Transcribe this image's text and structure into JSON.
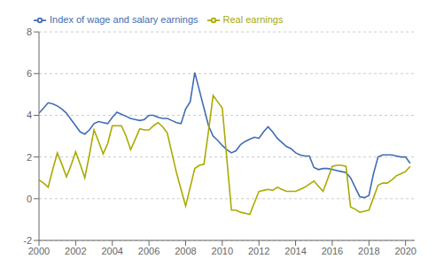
{
  "chart_data": {
    "type": "line",
    "x": [
      2000.0,
      2000.25,
      2000.5,
      2000.75,
      2001.0,
      2001.25,
      2001.5,
      2001.75,
      2002.0,
      2002.25,
      2002.5,
      2002.75,
      2003.0,
      2003.25,
      2003.5,
      2003.75,
      2004.0,
      2004.25,
      2004.5,
      2004.75,
      2005.0,
      2005.25,
      2005.5,
      2005.75,
      2006.0,
      2006.25,
      2006.5,
      2006.75,
      2007.0,
      2007.25,
      2007.5,
      2007.75,
      2008.0,
      2008.25,
      2008.5,
      2008.75,
      2009.0,
      2009.25,
      2009.5,
      2009.75,
      2010.0,
      2010.25,
      2010.5,
      2010.75,
      2011.0,
      2011.25,
      2011.5,
      2011.75,
      2012.0,
      2012.25,
      2012.5,
      2012.75,
      2013.0,
      2013.25,
      2013.5,
      2013.75,
      2014.0,
      2014.25,
      2014.5,
      2014.75,
      2015.0,
      2015.25,
      2015.5,
      2015.75,
      2016.0,
      2016.25,
      2016.5,
      2016.75,
      2017.0,
      2017.25,
      2017.5,
      2017.75,
      2018.0,
      2018.25,
      2018.5,
      2018.75,
      2019.0,
      2019.25,
      2019.5,
      2019.75,
      2020.0,
      2020.25
    ],
    "series": [
      {
        "name": "Index of wage and salary earnings",
        "color": "#3F6DB4",
        "values": [
          4.1,
          4.35,
          4.6,
          4.55,
          4.45,
          4.3,
          4.1,
          3.8,
          3.5,
          3.2,
          3.1,
          3.3,
          3.6,
          3.7,
          3.65,
          3.6,
          3.9,
          4.15,
          4.05,
          3.95,
          3.85,
          3.8,
          3.75,
          3.8,
          4.0,
          4.0,
          3.9,
          3.85,
          3.85,
          3.75,
          3.65,
          3.6,
          4.3,
          4.65,
          6.05,
          5.2,
          4.35,
          3.5,
          3.0,
          2.8,
          2.55,
          2.35,
          2.2,
          2.3,
          2.6,
          2.75,
          2.85,
          2.95,
          2.9,
          3.2,
          3.45,
          3.2,
          2.9,
          2.7,
          2.5,
          2.4,
          2.2,
          2.1,
          2.05,
          2.05,
          1.5,
          1.4,
          1.45,
          1.45,
          1.4,
          1.35,
          1.3,
          1.25,
          1.0,
          0.55,
          0.1,
          0.05,
          0.15,
          1.2,
          2.0,
          2.1,
          2.1,
          2.1,
          2.05,
          2.0,
          2.0,
          1.7
        ]
      },
      {
        "name": "Real earnings",
        "color": "#AAAA00",
        "values": [
          0.9,
          0.75,
          0.55,
          1.4,
          2.2,
          1.65,
          1.05,
          1.6,
          2.25,
          1.65,
          1.0,
          2.1,
          3.3,
          2.75,
          2.15,
          2.65,
          3.5,
          3.5,
          3.5,
          3.0,
          2.35,
          2.85,
          3.35,
          3.3,
          3.3,
          3.5,
          3.65,
          3.45,
          3.15,
          2.2,
          1.25,
          0.45,
          -0.35,
          0.55,
          1.45,
          1.6,
          1.65,
          3.25,
          4.95,
          4.65,
          4.35,
          1.9,
          -0.55,
          -0.55,
          -0.65,
          -0.7,
          -0.75,
          -0.2,
          0.35,
          0.4,
          0.45,
          0.4,
          0.55,
          0.45,
          0.35,
          0.35,
          0.35,
          0.45,
          0.55,
          0.7,
          0.85,
          0.6,
          0.35,
          0.95,
          1.55,
          1.6,
          1.6,
          1.55,
          -0.4,
          -0.5,
          -0.65,
          -0.6,
          -0.55,
          0.05,
          0.65,
          0.75,
          0.75,
          0.9,
          1.1,
          1.2,
          1.3,
          1.55
        ]
      }
    ],
    "xlim": [
      2000.0,
      2020.5
    ],
    "xticks": [
      2000,
      2002,
      2004,
      2006,
      2008,
      2010,
      2012,
      2014,
      2016,
      2018,
      2020
    ],
    "ylim": [
      -2,
      8
    ],
    "yticks": [
      -2,
      0,
      2,
      4,
      6,
      8
    ],
    "grid": "y",
    "legend": "upper left"
  }
}
